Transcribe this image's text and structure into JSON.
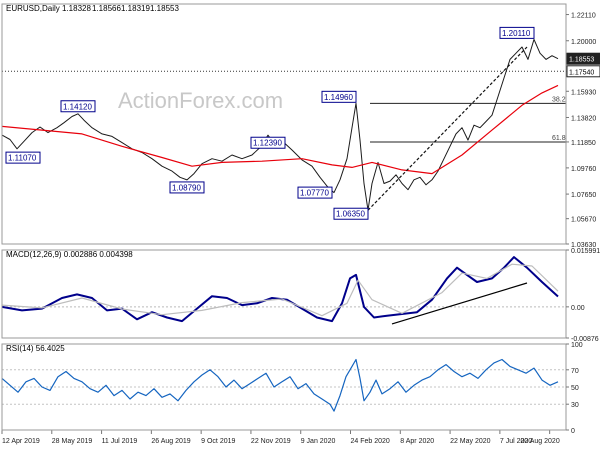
{
  "chart_data": [
    {
      "panel": "price",
      "type": "line",
      "symbol": "EURUSD",
      "timeframe": "Daily",
      "header_text": "EURUSD,Daily",
      "ohlc": {
        "open": "1.18328",
        "high": "1.18566",
        "low": "1.18319",
        "close": "1.18553"
      },
      "watermark": "ActionForex.com",
      "ylim": [
        1.0363,
        1.2296
      ],
      "y_ticks": [
        "1.22110",
        "1.20000",
        "1.17540",
        "1.15930",
        "1.13820",
        "1.11850",
        "1.09760",
        "1.07650",
        "1.05670",
        "1.03630"
      ],
      "x_labels": [
        "12 Apr 2019",
        "28 May 2019",
        "11 Jul 2019",
        "26 Aug 2019",
        "9 Oct 2019",
        "22 Nov 2019",
        "9 Jan 2020",
        "24 Feb 2020",
        "8 Apr 2020",
        "22 May 2020",
        "7 Jul 2020",
        "20 Aug 2020"
      ],
      "series": [
        {
          "name": "price",
          "color": "#1b1b1b",
          "points": [
            [
              0,
              1.124
            ],
            [
              8,
              1.1205
            ],
            [
              15,
              1.113
            ],
            [
              22,
              1.119
            ],
            [
              30,
              1.126
            ],
            [
              38,
              1.1305
            ],
            [
              46,
              1.126
            ],
            [
              55,
              1.13
            ],
            [
              62,
              1.134
            ],
            [
              70,
              1.139
            ],
            [
              76,
              1.1412
            ],
            [
              82,
              1.136
            ],
            [
              90,
              1.13
            ],
            [
              100,
              1.125
            ],
            [
              110,
              1.123
            ],
            [
              120,
              1.118
            ],
            [
              130,
              1.113
            ],
            [
              140,
              1.11
            ],
            [
              150,
              1.105
            ],
            [
              160,
              1.099
            ],
            [
              170,
              1.095
            ],
            [
              178,
              1.09
            ],
            [
              185,
              1.0879
            ],
            [
              192,
              1.093
            ],
            [
              200,
              1.101
            ],
            [
              210,
              1.105
            ],
            [
              220,
              1.103
            ],
            [
              230,
              1.108
            ],
            [
              240,
              1.105
            ],
            [
              250,
              1.108
            ],
            [
              258,
              1.114
            ],
            [
              266,
              1.1239
            ],
            [
              274,
              1.115
            ],
            [
              282,
              1.118
            ],
            [
              290,
              1.112
            ],
            [
              300,
              1.104
            ],
            [
              310,
              1.099
            ],
            [
              318,
              1.09
            ],
            [
              326,
              1.082
            ],
            [
              332,
              1.0777
            ],
            [
              338,
              1.088
            ],
            [
              345,
              1.105
            ],
            [
              350,
              1.13
            ],
            [
              354,
              1.1496
            ],
            [
              358,
              1.12
            ],
            [
              362,
              1.085
            ],
            [
              366,
              1.0635
            ],
            [
              370,
              1.085
            ],
            [
              376,
              1.102
            ],
            [
              382,
              1.085
            ],
            [
              388,
              1.087
            ],
            [
              394,
              1.092
            ],
            [
              400,
              1.085
            ],
            [
              406,
              1.08
            ],
            [
              412,
              1.088
            ],
            [
              418,
              1.09
            ],
            [
              424,
              1.084
            ],
            [
              430,
              1.088
            ],
            [
              436,
              1.095
            ],
            [
              442,
              1.105
            ],
            [
              448,
              1.115
            ],
            [
              454,
              1.125
            ],
            [
              460,
              1.13
            ],
            [
              466,
              1.12
            ],
            [
              472,
              1.132
            ],
            [
              478,
              1.13
            ],
            [
              484,
              1.135
            ],
            [
              490,
              1.14
            ],
            [
              496,
              1.155
            ],
            [
              502,
              1.17
            ],
            [
              508,
              1.185
            ],
            [
              514,
              1.19
            ],
            [
              520,
              1.195
            ],
            [
              526,
              1.185
            ],
            [
              532,
              1.2011
            ],
            [
              538,
              1.19
            ],
            [
              544,
              1.185
            ],
            [
              550,
              1.188
            ],
            [
              556,
              1.18553
            ]
          ]
        },
        {
          "name": "moving average",
          "color": "#e8000b",
          "points": [
            [
              0,
              1.131
            ],
            [
              40,
              1.128
            ],
            [
              80,
              1.125
            ],
            [
              120,
              1.115
            ],
            [
              160,
              1.106
            ],
            [
              190,
              1.099
            ],
            [
              220,
              1.102
            ],
            [
              260,
              1.103
            ],
            [
              300,
              1.105
            ],
            [
              330,
              1.1
            ],
            [
              350,
              1.098
            ],
            [
              370,
              1.102
            ],
            [
              400,
              1.096
            ],
            [
              430,
              1.093
            ],
            [
              460,
              1.108
            ],
            [
              490,
              1.128
            ],
            [
              520,
              1.148
            ],
            [
              540,
              1.158
            ],
            [
              556,
              1.164
            ]
          ]
        },
        {
          "name": "trendline",
          "color": "#111111",
          "dashed": true,
          "points": [
            [
              366,
              1.0635
            ],
            [
              525,
              1.195
            ]
          ]
        }
      ],
      "annotations": [
        {
          "label": "1.11070",
          "x": 0,
          "y": 1.1107
        },
        {
          "label": "1.14120",
          "x": 76,
          "y": 1.1412
        },
        {
          "label": "1.08790",
          "x": 185,
          "y": 1.0879
        },
        {
          "label": "1.12390",
          "x": 266,
          "y": 1.1239
        },
        {
          "label": "1.07770",
          "x": 332,
          "y": 1.0777
        },
        {
          "label": "1.14960",
          "x": 354,
          "y": 1.1496
        },
        {
          "label": "1.06350",
          "x": 366,
          "y": 1.0635
        },
        {
          "label": "1.20110",
          "x": 532,
          "y": 1.2011
        }
      ],
      "horizontal_levels": [
        {
          "value": 1.1754,
          "label": "",
          "style": "dotted"
        },
        {
          "value": 1.1496,
          "label": "38.2"
        },
        {
          "value": 1.1185,
          "label": "61.8"
        }
      ],
      "price_tags": [
        {
          "value": 1.18553,
          "label": "1.18553",
          "style": "dark"
        },
        {
          "value": 1.1754,
          "label": "1.17540",
          "style": "light"
        }
      ]
    },
    {
      "panel": "macd",
      "type": "line",
      "header_text": "MACD(12,26,9) 0.002886 0.004398",
      "ylim": [
        -0.00876,
        0.01599
      ],
      "y_ticks": [
        "0.015991",
        "0.00",
        "-0.00876"
      ],
      "series": [
        {
          "name": "macd",
          "color": "#00008b",
          "points": [
            [
              0,
              0.0
            ],
            [
              20,
              -0.001
            ],
            [
              40,
              -0.0005
            ],
            [
              60,
              0.0025
            ],
            [
              75,
              0.0035
            ],
            [
              90,
              0.0025
            ],
            [
              105,
              -0.001
            ],
            [
              120,
              -0.0005
            ],
            [
              135,
              -0.0035
            ],
            [
              150,
              -0.0015
            ],
            [
              165,
              -0.003
            ],
            [
              180,
              -0.004
            ],
            [
              195,
              -0.0005
            ],
            [
              210,
              0.003
            ],
            [
              225,
              0.0025
            ],
            [
              240,
              0.0005
            ],
            [
              255,
              0.001
            ],
            [
              270,
              0.0025
            ],
            [
              285,
              0.002
            ],
            [
              300,
              -0.0005
            ],
            [
              315,
              -0.003
            ],
            [
              330,
              -0.004
            ],
            [
              340,
              0.001
            ],
            [
              348,
              0.008
            ],
            [
              354,
              0.009
            ],
            [
              362,
              0.0
            ],
            [
              372,
              -0.003
            ],
            [
              385,
              -0.0025
            ],
            [
              400,
              -0.002
            ],
            [
              415,
              -0.0015
            ],
            [
              430,
              0.002
            ],
            [
              445,
              0.008
            ],
            [
              455,
              0.011
            ],
            [
              465,
              0.009
            ],
            [
              475,
              0.007
            ],
            [
              490,
              0.008
            ],
            [
              502,
              0.011
            ],
            [
              512,
              0.014
            ],
            [
              525,
              0.011
            ],
            [
              540,
              0.007
            ],
            [
              556,
              0.0029
            ]
          ]
        },
        {
          "name": "signal",
          "color": "#bdbdbd",
          "points": [
            [
              0,
              0.0005
            ],
            [
              40,
              -0.0003
            ],
            [
              80,
              0.0025
            ],
            [
              120,
              -0.0006
            ],
            [
              160,
              -0.0022
            ],
            [
              200,
              -0.001
            ],
            [
              240,
              0.0012
            ],
            [
              280,
              0.0022
            ],
            [
              320,
              -0.0025
            ],
            [
              345,
              0.001
            ],
            [
              356,
              0.0075
            ],
            [
              370,
              0.002
            ],
            [
              400,
              -0.0018
            ],
            [
              440,
              0.004
            ],
            [
              460,
              0.0095
            ],
            [
              485,
              0.008
            ],
            [
              510,
              0.012
            ],
            [
              530,
              0.0115
            ],
            [
              556,
              0.0044
            ]
          ]
        },
        {
          "name": "trendline",
          "color": "#000000",
          "points": [
            [
              390,
              -0.0048
            ],
            [
              525,
              0.0067
            ]
          ]
        }
      ]
    },
    {
      "panel": "rsi",
      "type": "line",
      "header_text": "RSI(14) 56.4025",
      "ylim": [
        0,
        100
      ],
      "y_ticks": [
        "100",
        "70",
        "50",
        "30",
        "0"
      ],
      "series": [
        {
          "name": "rsi",
          "color": "#1565c0",
          "points": [
            [
              0,
              60
            ],
            [
              8,
              52
            ],
            [
              16,
              44
            ],
            [
              24,
              56
            ],
            [
              32,
              60
            ],
            [
              40,
              50
            ],
            [
              48,
              46
            ],
            [
              56,
              62
            ],
            [
              64,
              68
            ],
            [
              72,
              60
            ],
            [
              80,
              56
            ],
            [
              88,
              48
            ],
            [
              96,
              44
            ],
            [
              104,
              52
            ],
            [
              112,
              40
            ],
            [
              120,
              46
            ],
            [
              128,
              36
            ],
            [
              136,
              44
            ],
            [
              144,
              40
            ],
            [
              152,
              48
            ],
            [
              160,
              38
            ],
            [
              168,
              42
            ],
            [
              176,
              34
            ],
            [
              184,
              46
            ],
            [
              192,
              56
            ],
            [
              200,
              64
            ],
            [
              208,
              70
            ],
            [
              216,
              62
            ],
            [
              224,
              50
            ],
            [
              232,
              58
            ],
            [
              240,
              48
            ],
            [
              248,
              54
            ],
            [
              256,
              60
            ],
            [
              264,
              66
            ],
            [
              272,
              50
            ],
            [
              280,
              56
            ],
            [
              288,
              62
            ],
            [
              296,
              48
            ],
            [
              304,
              54
            ],
            [
              312,
              42
            ],
            [
              320,
              36
            ],
            [
              328,
              30
            ],
            [
              332,
              22
            ],
            [
              338,
              40
            ],
            [
              344,
              62
            ],
            [
              350,
              74
            ],
            [
              354,
              82
            ],
            [
              358,
              60
            ],
            [
              362,
              34
            ],
            [
              368,
              44
            ],
            [
              374,
              58
            ],
            [
              380,
              42
            ],
            [
              388,
              48
            ],
            [
              396,
              56
            ],
            [
              404,
              44
            ],
            [
              412,
              52
            ],
            [
              420,
              58
            ],
            [
              428,
              62
            ],
            [
              436,
              70
            ],
            [
              444,
              76
            ],
            [
              452,
              68
            ],
            [
              460,
              62
            ],
            [
              468,
              66
            ],
            [
              476,
              60
            ],
            [
              484,
              70
            ],
            [
              492,
              78
            ],
            [
              500,
              82
            ],
            [
              508,
              74
            ],
            [
              516,
              70
            ],
            [
              524,
              66
            ],
            [
              532,
              72
            ],
            [
              540,
              58
            ],
            [
              548,
              52
            ],
            [
              556,
              56
            ]
          ]
        }
      ]
    }
  ]
}
